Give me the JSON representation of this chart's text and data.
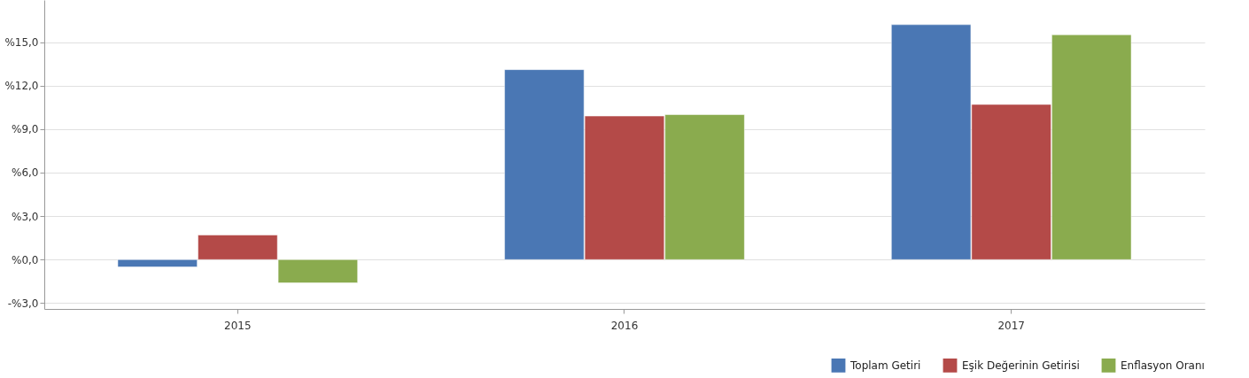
{
  "chart_data": {
    "type": "bar",
    "categories": [
      "2015",
      "2016",
      "2017"
    ],
    "series": [
      {
        "name": "Toplam Getiri",
        "color": "#4a77b4",
        "values": [
          -0.5,
          13.1,
          16.2
        ]
      },
      {
        "name": "Eşik Değerinin Getirisi",
        "color": "#b44a48",
        "values": [
          1.7,
          9.9,
          10.7
        ]
      },
      {
        "name": "Enflasyon Oranı",
        "color": "#8aab4e",
        "values": [
          -1.6,
          10.0,
          15.5
        ]
      }
    ],
    "ylim": [
      -3.4,
      17.9
    ],
    "yticks": [
      {
        "value": -3,
        "label": "-%3,0"
      },
      {
        "value": 0,
        "label": "%0,0"
      },
      {
        "value": 3,
        "label": "%3,0"
      },
      {
        "value": 6,
        "label": "%6,0"
      },
      {
        "value": 9,
        "label": "%9,0"
      },
      {
        "value": 12,
        "label": "%12,0"
      },
      {
        "value": 15,
        "label": "%15,0"
      }
    ],
    "grid": "y",
    "legend": "bottom right"
  }
}
